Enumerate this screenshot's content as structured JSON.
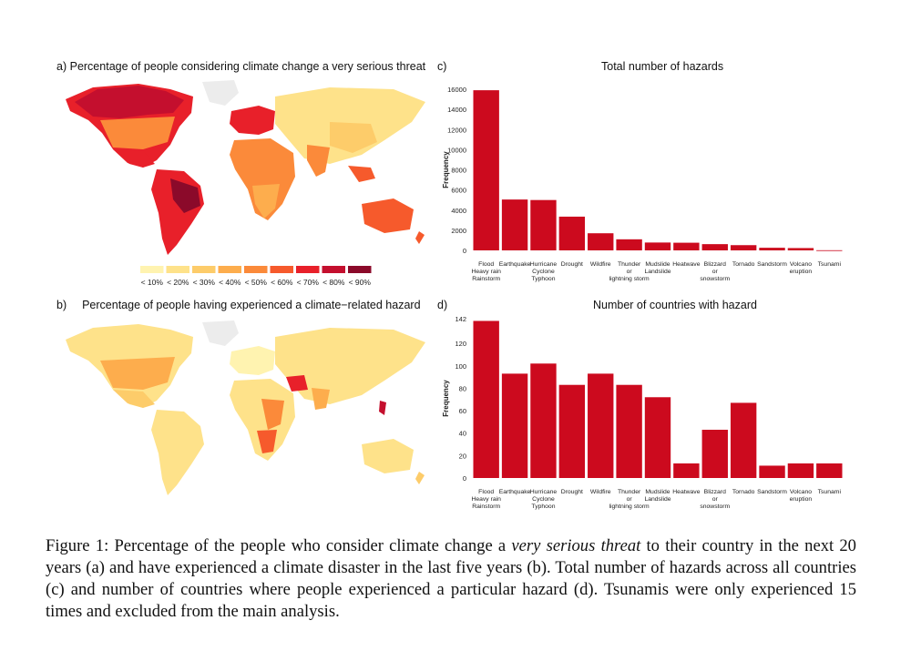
{
  "panels": {
    "a": {
      "letter": "a)",
      "title": "Percentage of people considering climate change a very serious threat"
    },
    "b": {
      "letter": "b)",
      "title": "Percentage of people having experienced a climate−related hazard"
    },
    "c": {
      "letter": "c)",
      "title": "Total number of hazards"
    },
    "d": {
      "letter": "d)",
      "title": "Number of countries with hazard"
    }
  },
  "legend": {
    "labels": [
      "< 10%",
      "< 20%",
      "< 30%",
      "< 40%",
      "< 50%",
      "< 60%",
      "< 70%",
      "< 80%",
      "< 90%"
    ],
    "colors": [
      "#fff3b0",
      "#fee28a",
      "#fdcc6a",
      "#fdad4d",
      "#fb8a3a",
      "#f65a2c",
      "#e8202a",
      "#c40f2e",
      "#8b0a2a"
    ]
  },
  "chart_data": [
    {
      "type": "bar",
      "panel": "c",
      "title": "Total number of hazards",
      "ylabel": "Frequency",
      "xlabel": "",
      "categories": [
        [
          "Flood",
          "Heavy rain",
          "Rainstorm"
        ],
        [
          "Earthquake"
        ],
        [
          "Hurricane",
          "Cyclone",
          "Typhoon"
        ],
        [
          "Drought"
        ],
        [
          "Wildfire"
        ],
        [
          "Thunder",
          "or",
          "lightning storm"
        ],
        [
          "Mudslide",
          "Landslide"
        ],
        [
          "Heatwave"
        ],
        [
          "Blizzard",
          "or",
          "snowstorm"
        ],
        [
          "Tornado"
        ],
        [
          "Sandstorm"
        ],
        [
          "Volcano",
          "eruption"
        ],
        [
          "Tsunami"
        ]
      ],
      "values": [
        15900,
        5050,
        5000,
        3350,
        1700,
        1100,
        780,
        760,
        620,
        520,
        260,
        230,
        15
      ],
      "ylim": [
        0,
        16000
      ],
      "yticks": [
        0,
        2000,
        4000,
        6000,
        8000,
        10000,
        12000,
        14000,
        16000
      ],
      "color": "#cc0a1e"
    },
    {
      "type": "bar",
      "panel": "d",
      "title": "Number of countries with hazard",
      "ylabel": "Frequency",
      "xlabel": "",
      "categories": [
        [
          "Flood",
          "Heavy rain",
          "Rainstorm"
        ],
        [
          "Earthquake"
        ],
        [
          "Hurricane",
          "Cyclone",
          "Typhoon"
        ],
        [
          "Drought"
        ],
        [
          "Wildfire"
        ],
        [
          "Thunder",
          "or",
          "lightning storm"
        ],
        [
          "Mudslide",
          "Landslide"
        ],
        [
          "Heatwave"
        ],
        [
          "Blizzard",
          "or",
          "snowstorm"
        ],
        [
          "Tornado"
        ],
        [
          "Sandstorm"
        ],
        [
          "Volcano",
          "eruption"
        ],
        [
          "Tsunami"
        ]
      ],
      "values": [
        140,
        93,
        102,
        83,
        93,
        83,
        72,
        13,
        43,
        67,
        11,
        13,
        13
      ],
      "ylim": [
        0,
        142
      ],
      "yticks": [
        0,
        20,
        40,
        60,
        80,
        100,
        120,
        142
      ],
      "color": "#cc0a1e"
    }
  ],
  "caption": {
    "prefix": "Figure 1: Percentage of the people who consider climate change a ",
    "emphasis": "very serious threat",
    "suffix": " to their country in the next 20 years (a) and have experienced a climate disaster in the last five years (b). Total number of hazards across all countries (c) and number of countries where people experienced a particular hazard (d). Tsunamis were only experienced 15 times and excluded from the main analysis."
  }
}
